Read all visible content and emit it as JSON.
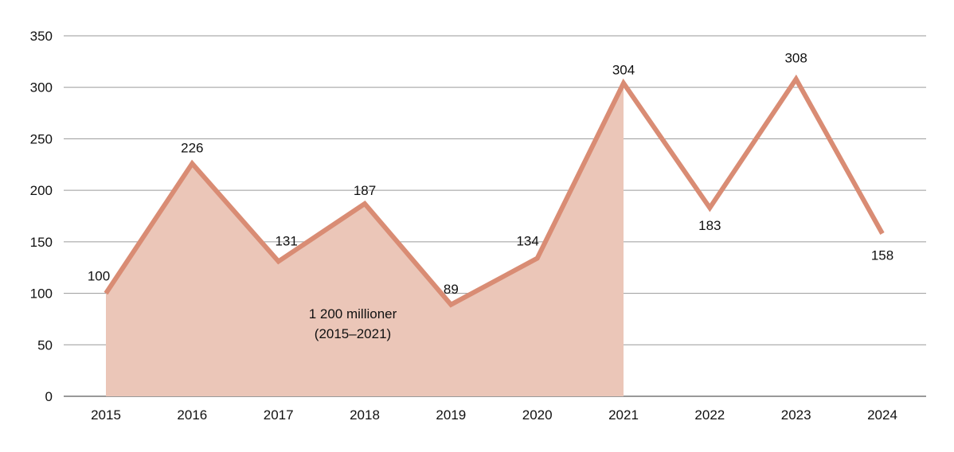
{
  "chart_data": {
    "type": "line",
    "title": "",
    "xlabel": "",
    "ylabel": "",
    "categories": [
      "2015",
      "2016",
      "2017",
      "2018",
      "2019",
      "2020",
      "2021",
      "2022",
      "2023",
      "2024"
    ],
    "values": [
      100,
      226,
      131,
      187,
      89,
      134,
      304,
      183,
      308,
      158
    ],
    "ylim": [
      0,
      350
    ],
    "yticks": [
      0,
      50,
      100,
      150,
      200,
      250,
      300,
      350
    ],
    "grid": true,
    "shaded_range": [
      "2015",
      "2021"
    ],
    "annotation": {
      "line1": "1 200 millioner",
      "line2": "(2015–2021)"
    },
    "colors": {
      "line": "#d98c74",
      "fill": "#ebc6b8",
      "grid": "#9a9a9a"
    }
  }
}
